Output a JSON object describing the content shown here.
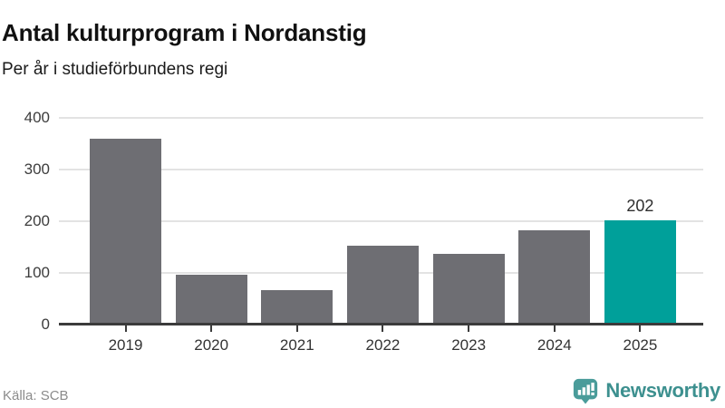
{
  "header": {
    "title": "Antal kulturprogram i Nordanstig",
    "subtitle": "Per år i studieförbundens regi"
  },
  "footer": {
    "source": "Källa: SCB",
    "brand_name": "Newsworthy"
  },
  "colors": {
    "bar": "#6e6e73",
    "highlight": "#00a09a",
    "gridline": "#e3e3e3",
    "axis": "#3b3b3b",
    "brand": "#3d908f",
    "brand_icon": "#4a9c9a"
  },
  "chart_data": {
    "type": "bar",
    "title": "Antal kulturprogram i Nordanstig",
    "subtitle": "Per år i studieförbundens regi",
    "categories": [
      "2019",
      "2020",
      "2021",
      "2022",
      "2023",
      "2024",
      "2025"
    ],
    "values": [
      360,
      96,
      66,
      152,
      137,
      182,
      202
    ],
    "highlight_index": 6,
    "data_labels": {
      "6": "202"
    },
    "xlabel": "",
    "ylabel": "",
    "ylim": [
      0,
      400
    ],
    "yticks": [
      0,
      100,
      200,
      300,
      400
    ],
    "grid": true,
    "legend": "none",
    "source": "Källa: SCB"
  }
}
